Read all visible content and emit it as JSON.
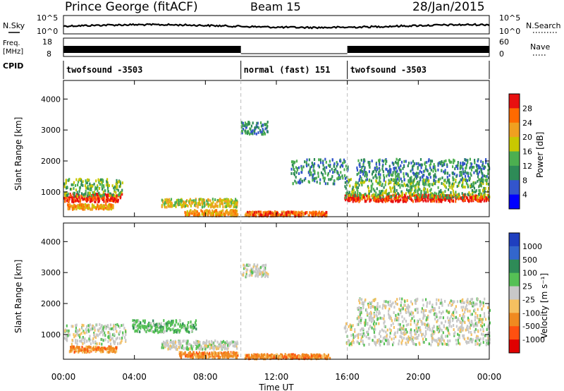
{
  "header": {
    "station": "Prince George (fitACF)",
    "beam": "Beam 15",
    "date": "28/Jan/2015"
  },
  "noise_panel": {
    "left_label": "N.Sky",
    "right_label": "N.Search",
    "left_ticks": [
      "10^5",
      "10^0"
    ],
    "right_ticks": [
      "10^5",
      "10^0"
    ]
  },
  "freq_panel": {
    "left_label_1": "Freq.",
    "left_label_2": "[MHz]",
    "right_label": "Nave",
    "left_ticks": [
      "18",
      "8"
    ],
    "right_ticks": [
      "60",
      "0"
    ]
  },
  "cpid_panel": {
    "label": "CPID",
    "segments": [
      {
        "label": "twofsound -3503",
        "start_hour": 0,
        "end_hour": 10
      },
      {
        "label": "normal (fast) 151",
        "start_hour": 10,
        "end_hour": 16
      },
      {
        "label": "twofsound -3503",
        "start_hour": 16,
        "end_hour": 24
      }
    ]
  },
  "x_axis": {
    "label": "Time UT",
    "tick_labels": [
      "00:00",
      "04:00",
      "08:00",
      "12:00",
      "16:00",
      "20:00",
      "00:00"
    ],
    "range_hours": [
      0,
      24
    ]
  },
  "power_colorbar": {
    "label": "Power [dB]",
    "ticks": [
      "28",
      "24",
      "20",
      "16",
      "12",
      "8",
      "4"
    ],
    "colors": [
      "#0000ff",
      "#3355cc",
      "#2e8b57",
      "#4caf50",
      "#c8c800",
      "#f0a020",
      "#ff6a00",
      "#e81010"
    ]
  },
  "velocity_colorbar": {
    "label": "Velocity [m s⁻¹]",
    "ticks": [
      "1000",
      "500",
      "100",
      "25",
      "-25",
      "-100",
      "-500",
      "-1000"
    ],
    "colors": [
      "#1f3fbf",
      "#3366cc",
      "#2e8b57",
      "#55c055",
      "#c8c8c8",
      "#f5c060",
      "#f08a20",
      "#ff5010",
      "#e00000"
    ]
  },
  "chart_data": [
    {
      "type": "heatmap",
      "title": "Power",
      "xlabel": "",
      "ylabel": "Slant Range [km]",
      "xlim_hours": [
        0,
        24
      ],
      "ylim_km": [
        200,
        4600
      ],
      "y_tick_labels": [
        "1000",
        "2000",
        "3000",
        "4000"
      ],
      "bands": [
        {
          "t0": 0,
          "t1": 3.3,
          "r_center": 850,
          "r_half": 130,
          "dB": 28
        },
        {
          "t0": 0,
          "t1": 3.3,
          "r_center": 1180,
          "r_half": 280,
          "dB": 10
        },
        {
          "t0": 0.2,
          "t1": 2.8,
          "r_center": 560,
          "r_half": 80,
          "dB": 20
        },
        {
          "t0": 5.5,
          "t1": 9.8,
          "r_center": 680,
          "r_half": 130,
          "dB": 14
        },
        {
          "t0": 6.8,
          "t1": 9.8,
          "r_center": 360,
          "r_half": 90,
          "dB": 18
        },
        {
          "t0": 10.2,
          "t1": 14.8,
          "r_center": 330,
          "r_half": 70,
          "dB": 22
        },
        {
          "t0": 15.8,
          "t1": 24,
          "r_center": 840,
          "r_half": 110,
          "dB": 28
        },
        {
          "t0": 15.8,
          "t1": 24,
          "r_center": 1150,
          "r_half": 300,
          "dB": 10
        },
        {
          "t0": 16.5,
          "t1": 24,
          "r_center": 1750,
          "r_half": 350,
          "dB": 6
        },
        {
          "t0": 12.8,
          "t1": 16,
          "r_center": 1700,
          "r_half": 400,
          "dB": 8
        },
        {
          "t0": 10,
          "t1": 11.5,
          "r_center": 3100,
          "r_half": 200,
          "dB": 6
        }
      ]
    },
    {
      "type": "heatmap",
      "title": "Velocity",
      "xlabel": "Time UT",
      "ylabel": "Slant Range [km]",
      "xlim_hours": [
        0,
        24
      ],
      "ylim_km": [
        200,
        4600
      ],
      "y_tick_labels": [
        "1000",
        "2000",
        "3000",
        "4000"
      ],
      "bands": [
        {
          "t0": 0,
          "t1": 3.5,
          "r_center": 1050,
          "r_half": 320,
          "v": 0
        },
        {
          "t0": 0.3,
          "t1": 3.0,
          "r_center": 560,
          "r_half": 90,
          "v": -300
        },
        {
          "t0": 5.5,
          "t1": 9.8,
          "r_center": 700,
          "r_half": 140,
          "v": 0
        },
        {
          "t0": 6.5,
          "t1": 9.8,
          "r_center": 380,
          "r_half": 90,
          "v": -200
        },
        {
          "t0": 10.2,
          "t1": 15,
          "r_center": 330,
          "r_half": 70,
          "v": -150
        },
        {
          "t0": 15.8,
          "t1": 24,
          "r_center": 1050,
          "r_half": 350,
          "v": 0
        },
        {
          "t0": 16.5,
          "t1": 24,
          "r_center": 1800,
          "r_half": 400,
          "v": 0
        },
        {
          "t0": 3.8,
          "t1": 7.5,
          "r_center": 1300,
          "r_half": 200,
          "v": 150
        },
        {
          "t0": 10,
          "t1": 11.5,
          "r_center": 3100,
          "r_half": 200,
          "v": 0
        }
      ]
    }
  ]
}
